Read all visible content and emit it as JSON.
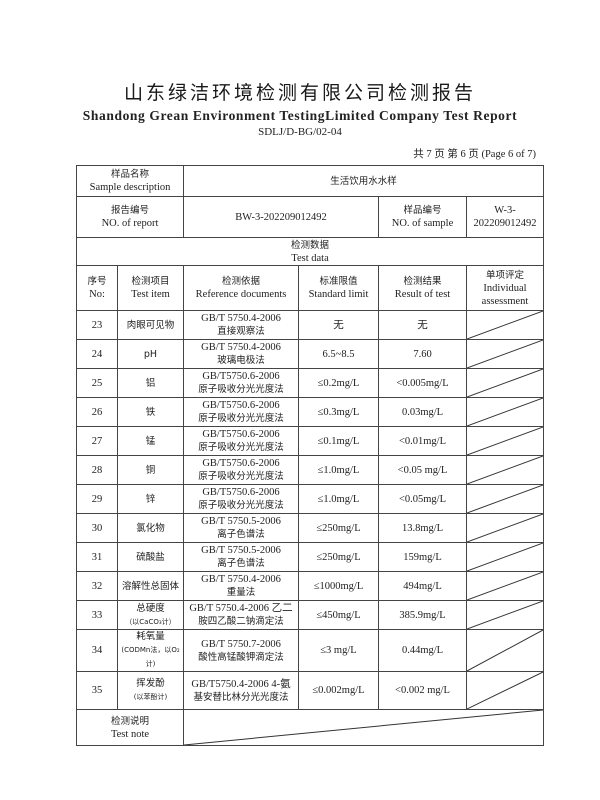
{
  "header": {
    "title_cn": "山东绿洁环境检测有限公司检测报告",
    "title_en": "Shandong Grean Environment TestingLimited Company Test Report",
    "doc_code": "SDLJ/D-BG/02-04",
    "page_info": "共 7 页  第 6 页  (Page 6 of 7)"
  },
  "sample": {
    "label_cn": "样品名称",
    "label_en": "Sample description",
    "value": "生活饮用水水样"
  },
  "report": {
    "label_cn": "报告编号",
    "label_en": "NO. of report",
    "value": "BW-3-202209012492",
    "sample_no_label_cn": "样品编号",
    "sample_no_label_en": "NO. of sample",
    "sample_no_value": "W-3-202209012492"
  },
  "test_data": {
    "label_cn": "检测数据",
    "label_en": "Test data"
  },
  "columns": [
    {
      "cn": "序号",
      "en": "No:"
    },
    {
      "cn": "检测项目",
      "en": "Test item"
    },
    {
      "cn": "检测依据",
      "en": "Reference documents"
    },
    {
      "cn": "标准限值",
      "en": "Standard limit"
    },
    {
      "cn": "检测结果",
      "en": "Result of test"
    },
    {
      "cn": "单项评定",
      "en": "Individual assessment"
    }
  ],
  "rows": [
    {
      "no": "23",
      "item": "肉眼可见物",
      "ref1": "GB/T 5750.4-2006",
      "ref2": "直接观察法",
      "limit": "无",
      "result": "无"
    },
    {
      "no": "24",
      "item": "pH",
      "ref1": "GB/T 5750.4-2006",
      "ref2": "玻璃电极法",
      "limit": "6.5~8.5",
      "result": "7.60"
    },
    {
      "no": "25",
      "item": "铝",
      "ref1": "GB/T5750.6-2006",
      "ref2": "原子吸收分光光度法",
      "limit": "≤0.2mg/L",
      "result": "<0.005mg/L"
    },
    {
      "no": "26",
      "item": "铁",
      "ref1": "GB/T5750.6-2006",
      "ref2": "原子吸收分光光度法",
      "limit": "≤0.3mg/L",
      "result": "0.03mg/L"
    },
    {
      "no": "27",
      "item": "锰",
      "ref1": "GB/T5750.6-2006",
      "ref2": "原子吸收分光光度法",
      "limit": "≤0.1mg/L",
      "result": "<0.01mg/L"
    },
    {
      "no": "28",
      "item": "铜",
      "ref1": "GB/T5750.6-2006",
      "ref2": "原子吸收分光光度法",
      "limit": "≤1.0mg/L",
      "result": "<0.05 mg/L"
    },
    {
      "no": "29",
      "item": "锌",
      "ref1": "GB/T5750.6-2006",
      "ref2": "原子吸收分光光度法",
      "limit": "≤1.0mg/L",
      "result": "<0.05mg/L"
    },
    {
      "no": "30",
      "item": "氯化物",
      "ref1": "GB/T 5750.5-2006",
      "ref2": "离子色谱法",
      "limit": "≤250mg/L",
      "result": "13.8mg/L"
    },
    {
      "no": "31",
      "item": "硫酸盐",
      "ref1": "GB/T 5750.5-2006",
      "ref2": "离子色谱法",
      "limit": "≤250mg/L",
      "result": "159mg/L"
    },
    {
      "no": "32",
      "item": "溶解性总固体",
      "ref1": "GB/T 5750.4-2006",
      "ref2": "重量法",
      "limit": "≤1000mg/L",
      "result": "494mg/L"
    },
    {
      "no": "33",
      "item": "总硬度",
      "item_sub": "（以CaCO₃计）",
      "ref1": "GB/T 5750.4-2006 乙二",
      "ref2": "胺四乙酸二钠滴定法",
      "limit": "≤450mg/L",
      "result": "385.9mg/L"
    },
    {
      "no": "34",
      "item": "耗氧量",
      "item_sub": "(CODMn法，以O₂计)",
      "ref1": "GB/T 5750.7-2006",
      "ref2": "酸性高锰酸钾滴定法",
      "limit": "≤3 mg/L",
      "result": "0.44mg/L"
    },
    {
      "no": "35",
      "item": "挥发酚",
      "item_sub": "(以苯酚计)",
      "ref1": "GB/T5750.4-2006 4-氨",
      "ref2": "基安替比林分光光度法",
      "limit": "≤0.002mg/L",
      "result": "<0.002 mg/L"
    }
  ],
  "note": {
    "label_cn": "检测说明",
    "label_en": "Test note"
  }
}
